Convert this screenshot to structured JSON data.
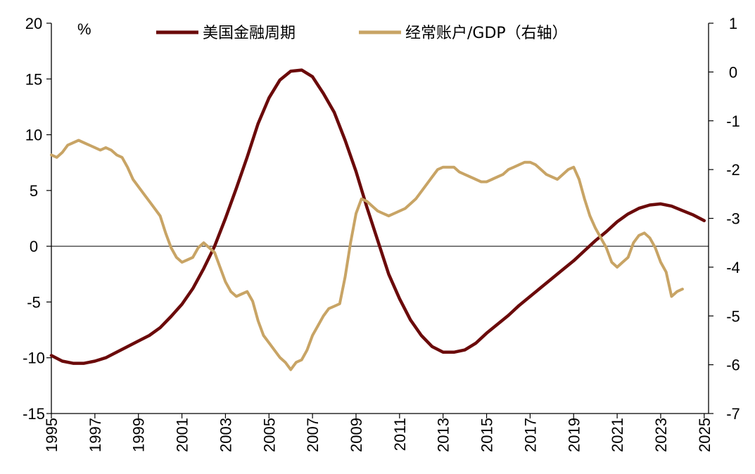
{
  "chart_data": {
    "type": "line",
    "title": "",
    "unit_label": "%",
    "x_ticks": [
      "1995",
      "1997",
      "1999",
      "2001",
      "2003",
      "2005",
      "2007",
      "2009",
      "2011",
      "2013",
      "2015",
      "2017",
      "2019",
      "2021",
      "2023",
      "2025"
    ],
    "xlim": [
      1995,
      2025.2
    ],
    "y_left": {
      "ylim": [
        -15,
        20
      ],
      "ticks": [
        -15,
        -10,
        -5,
        0,
        5,
        10,
        15,
        20
      ]
    },
    "y_right": {
      "ylim": [
        -7,
        1
      ],
      "ticks": [
        -7,
        -6,
        -5,
        -4,
        -3,
        -2,
        -1,
        0,
        1
      ]
    },
    "zero_line": true,
    "legend_position": "top",
    "series": [
      {
        "name": "美国金融周期",
        "axis": "left",
        "color": "#6B0A0A",
        "points": [
          [
            1995.0,
            -9.8
          ],
          [
            1995.5,
            -10.3
          ],
          [
            1996.0,
            -10.5
          ],
          [
            1996.5,
            -10.5
          ],
          [
            1997.0,
            -10.3
          ],
          [
            1997.5,
            -10.0
          ],
          [
            1998.0,
            -9.5
          ],
          [
            1998.5,
            -9.0
          ],
          [
            1999.0,
            -8.5
          ],
          [
            1999.5,
            -8.0
          ],
          [
            2000.0,
            -7.3
          ],
          [
            2000.5,
            -6.3
          ],
          [
            2001.0,
            -5.2
          ],
          [
            2001.5,
            -3.8
          ],
          [
            2002.0,
            -2.0
          ],
          [
            2002.5,
            0.0
          ],
          [
            2003.0,
            2.5
          ],
          [
            2003.5,
            5.2
          ],
          [
            2004.0,
            8.0
          ],
          [
            2004.5,
            11.0
          ],
          [
            2005.0,
            13.3
          ],
          [
            2005.5,
            14.9
          ],
          [
            2006.0,
            15.7
          ],
          [
            2006.5,
            15.8
          ],
          [
            2007.0,
            15.2
          ],
          [
            2007.5,
            13.7
          ],
          [
            2008.0,
            12.0
          ],
          [
            2008.5,
            9.5
          ],
          [
            2009.0,
            6.7
          ],
          [
            2009.5,
            3.5
          ],
          [
            2010.0,
            0.5
          ],
          [
            2010.5,
            -2.5
          ],
          [
            2011.0,
            -4.7
          ],
          [
            2011.5,
            -6.6
          ],
          [
            2012.0,
            -8.0
          ],
          [
            2012.5,
            -9.0
          ],
          [
            2013.0,
            -9.5
          ],
          [
            2013.5,
            -9.5
          ],
          [
            2014.0,
            -9.3
          ],
          [
            2014.5,
            -8.7
          ],
          [
            2015.0,
            -7.8
          ],
          [
            2015.5,
            -7.0
          ],
          [
            2016.0,
            -6.2
          ],
          [
            2016.5,
            -5.3
          ],
          [
            2017.0,
            -4.5
          ],
          [
            2017.5,
            -3.7
          ],
          [
            2018.0,
            -2.9
          ],
          [
            2018.5,
            -2.1
          ],
          [
            2019.0,
            -1.3
          ],
          [
            2019.5,
            -0.4
          ],
          [
            2020.0,
            0.5
          ],
          [
            2020.5,
            1.3
          ],
          [
            2021.0,
            2.2
          ],
          [
            2021.5,
            2.9
          ],
          [
            2022.0,
            3.4
          ],
          [
            2022.5,
            3.7
          ],
          [
            2023.0,
            3.8
          ],
          [
            2023.5,
            3.6
          ],
          [
            2024.0,
            3.2
          ],
          [
            2024.5,
            2.8
          ],
          [
            2025.0,
            2.3
          ]
        ]
      },
      {
        "name": "经常账户/GDP（右轴）",
        "axis": "right",
        "color": "#C8A465",
        "points": [
          [
            1995.0,
            -1.7
          ],
          [
            1995.25,
            -1.75
          ],
          [
            1995.5,
            -1.65
          ],
          [
            1995.75,
            -1.5
          ],
          [
            1996.0,
            -1.45
          ],
          [
            1996.25,
            -1.4
          ],
          [
            1996.5,
            -1.45
          ],
          [
            1996.75,
            -1.5
          ],
          [
            1997.0,
            -1.55
          ],
          [
            1997.25,
            -1.6
          ],
          [
            1997.5,
            -1.55
          ],
          [
            1997.75,
            -1.6
          ],
          [
            1998.0,
            -1.7
          ],
          [
            1998.25,
            -1.75
          ],
          [
            1998.5,
            -1.95
          ],
          [
            1998.75,
            -2.2
          ],
          [
            1999.0,
            -2.35
          ],
          [
            1999.25,
            -2.5
          ],
          [
            1999.5,
            -2.65
          ],
          [
            1999.75,
            -2.8
          ],
          [
            2000.0,
            -2.95
          ],
          [
            2000.25,
            -3.3
          ],
          [
            2000.5,
            -3.6
          ],
          [
            2000.75,
            -3.8
          ],
          [
            2001.0,
            -3.9
          ],
          [
            2001.25,
            -3.85
          ],
          [
            2001.5,
            -3.8
          ],
          [
            2001.75,
            -3.6
          ],
          [
            2002.0,
            -3.5
          ],
          [
            2002.25,
            -3.6
          ],
          [
            2002.5,
            -3.7
          ],
          [
            2002.75,
            -4.0
          ],
          [
            2003.0,
            -4.3
          ],
          [
            2003.25,
            -4.5
          ],
          [
            2003.5,
            -4.6
          ],
          [
            2003.75,
            -4.55
          ],
          [
            2004.0,
            -4.5
          ],
          [
            2004.25,
            -4.7
          ],
          [
            2004.5,
            -5.1
          ],
          [
            2004.75,
            -5.4
          ],
          [
            2005.0,
            -5.55
          ],
          [
            2005.25,
            -5.7
          ],
          [
            2005.5,
            -5.85
          ],
          [
            2005.75,
            -5.95
          ],
          [
            2006.0,
            -6.1
          ],
          [
            2006.25,
            -5.95
          ],
          [
            2006.5,
            -5.9
          ],
          [
            2006.75,
            -5.7
          ],
          [
            2007.0,
            -5.4
          ],
          [
            2007.25,
            -5.2
          ],
          [
            2007.5,
            -5.0
          ],
          [
            2007.75,
            -4.85
          ],
          [
            2008.0,
            -4.8
          ],
          [
            2008.25,
            -4.75
          ],
          [
            2008.5,
            -4.2
          ],
          [
            2008.75,
            -3.5
          ],
          [
            2009.0,
            -2.9
          ],
          [
            2009.25,
            -2.6
          ],
          [
            2009.5,
            -2.65
          ],
          [
            2009.75,
            -2.75
          ],
          [
            2010.0,
            -2.85
          ],
          [
            2010.25,
            -2.9
          ],
          [
            2010.5,
            -2.95
          ],
          [
            2010.75,
            -2.9
          ],
          [
            2011.0,
            -2.85
          ],
          [
            2011.25,
            -2.8
          ],
          [
            2011.5,
            -2.7
          ],
          [
            2011.75,
            -2.6
          ],
          [
            2012.0,
            -2.45
          ],
          [
            2012.25,
            -2.3
          ],
          [
            2012.5,
            -2.15
          ],
          [
            2012.75,
            -2.0
          ],
          [
            2013.0,
            -1.95
          ],
          [
            2013.25,
            -1.95
          ],
          [
            2013.5,
            -1.95
          ],
          [
            2013.75,
            -2.05
          ],
          [
            2014.0,
            -2.1
          ],
          [
            2014.25,
            -2.15
          ],
          [
            2014.5,
            -2.2
          ],
          [
            2014.75,
            -2.25
          ],
          [
            2015.0,
            -2.25
          ],
          [
            2015.25,
            -2.2
          ],
          [
            2015.5,
            -2.15
          ],
          [
            2015.75,
            -2.1
          ],
          [
            2016.0,
            -2.0
          ],
          [
            2016.25,
            -1.95
          ],
          [
            2016.5,
            -1.9
          ],
          [
            2016.75,
            -1.85
          ],
          [
            2017.0,
            -1.85
          ],
          [
            2017.25,
            -1.9
          ],
          [
            2017.5,
            -2.0
          ],
          [
            2017.75,
            -2.1
          ],
          [
            2018.0,
            -2.15
          ],
          [
            2018.25,
            -2.2
          ],
          [
            2018.5,
            -2.1
          ],
          [
            2018.75,
            -2.0
          ],
          [
            2019.0,
            -1.95
          ],
          [
            2019.25,
            -2.2
          ],
          [
            2019.5,
            -2.6
          ],
          [
            2019.75,
            -2.95
          ],
          [
            2020.0,
            -3.2
          ],
          [
            2020.25,
            -3.4
          ],
          [
            2020.5,
            -3.6
          ],
          [
            2020.75,
            -3.9
          ],
          [
            2021.0,
            -4.0
          ],
          [
            2021.25,
            -3.9
          ],
          [
            2021.5,
            -3.8
          ],
          [
            2021.75,
            -3.5
          ],
          [
            2022.0,
            -3.35
          ],
          [
            2022.25,
            -3.3
          ],
          [
            2022.5,
            -3.4
          ],
          [
            2022.75,
            -3.6
          ],
          [
            2023.0,
            -3.9
          ],
          [
            2023.25,
            -4.1
          ],
          [
            2023.5,
            -4.6
          ],
          [
            2023.75,
            -4.5
          ],
          [
            2024.0,
            -4.45
          ]
        ]
      }
    ]
  }
}
